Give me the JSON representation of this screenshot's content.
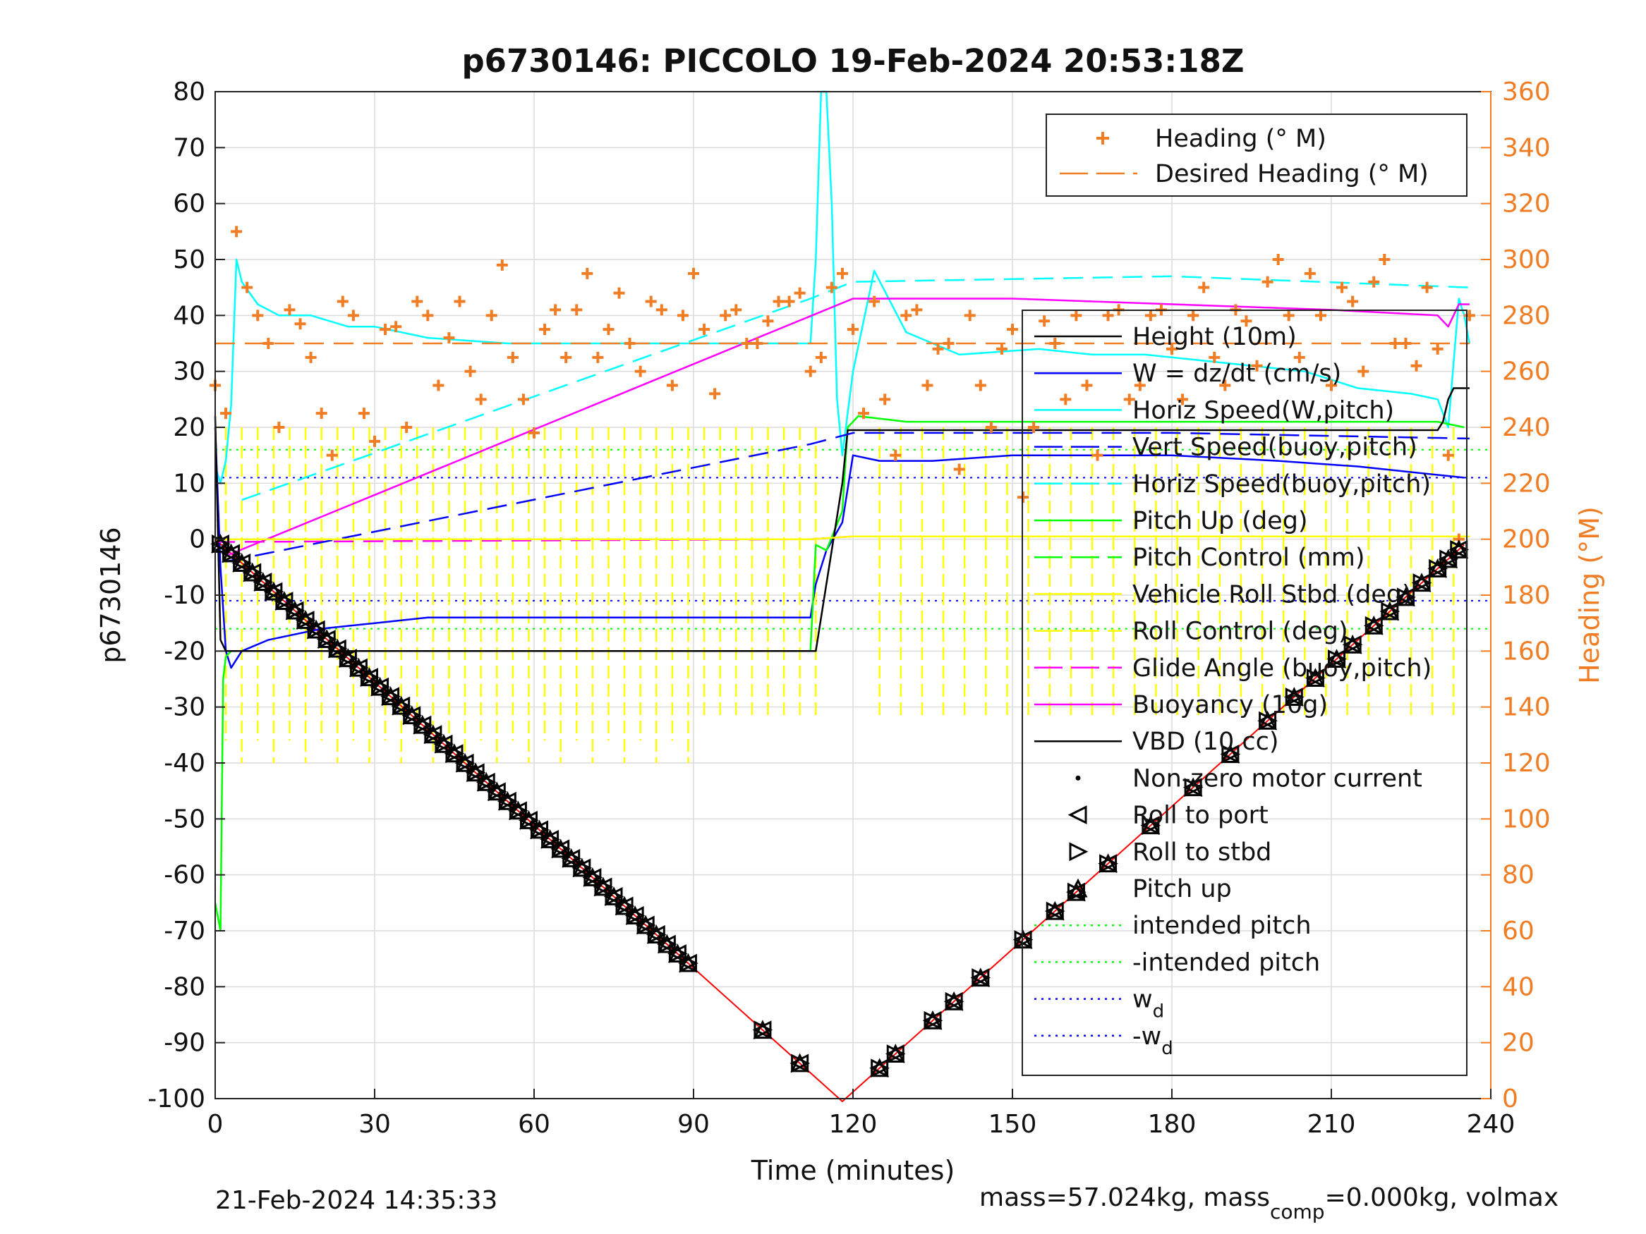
{
  "chart_data": {
    "type": "line",
    "title": "p6730146: PICCOLO 19-Feb-2024 20:53:18Z",
    "xlabel": "Time (minutes)",
    "ylabel": "p6730146",
    "ylabel_right": "Heading (°M)",
    "xlim": [
      0,
      240
    ],
    "ylim": [
      -100,
      80
    ],
    "ylim_right": [
      0,
      360
    ],
    "x_ticks": [
      "0",
      "30",
      "60",
      "90",
      "120",
      "150",
      "180",
      "210",
      "240"
    ],
    "y_ticks": [
      "80",
      "70",
      "60",
      "50",
      "40",
      "30",
      "20",
      "10",
      "0",
      "-10",
      "-20",
      "-30",
      "-40",
      "-50",
      "-60",
      "-70",
      "-80",
      "-90",
      "-100"
    ],
    "y_ticks_right": [
      "360",
      "340",
      "320",
      "300",
      "280",
      "260",
      "240",
      "220",
      "200",
      "180",
      "160",
      "140",
      "120",
      "100",
      "80",
      "60",
      "40",
      "20",
      "0"
    ],
    "grid": true,
    "footer_left": "21-Feb-2024 14:35:33",
    "footer_right_pre": "mass=57.024kg, mass",
    "footer_right_sub": "comp",
    "footer_right_post": "=0.000kg, volmax",
    "legend_top": [
      {
        "label": "Heading (° M)",
        "color": "#f07c24",
        "style": "plus"
      },
      {
        "label": "Desired Heading (° M)",
        "color": "#f07c24",
        "style": "dash"
      }
    ],
    "legend_main": [
      {
        "label": "Height (10m)",
        "color": "#000000",
        "style": "solid"
      },
      {
        "label": "W = dz/dt (cm/s)",
        "color": "#0000ff",
        "style": "solid"
      },
      {
        "label": "Horiz Speed(W,pitch)",
        "color": "#00ffff",
        "style": "solid"
      },
      {
        "label": "Vert Speed(buoy,pitch)",
        "color": "#0000ff",
        "style": "dash"
      },
      {
        "label": "Horiz Speed(buoy,pitch)",
        "color": "#00ffff",
        "style": "dash"
      },
      {
        "label": "Pitch Up (deg)",
        "color": "#00ff00",
        "style": "solid"
      },
      {
        "label": "Pitch Control (mm)",
        "color": "#00ff00",
        "style": "dash"
      },
      {
        "label": "Vehicle Roll Stbd (deg)",
        "color": "#ffff00",
        "style": "solid"
      },
      {
        "label": "Roll Control (deg)",
        "color": "#ffff00",
        "style": "dash"
      },
      {
        "label": "Glide Angle (buoy,pitch)",
        "color": "#ff00ff",
        "style": "dash"
      },
      {
        "label": "Buoyancy (10g)",
        "color": "#ff00ff",
        "style": "solid"
      },
      {
        "label": "VBD (10 cc)",
        "color": "#000000",
        "style": "solid"
      },
      {
        "label": "Non-zero motor current",
        "color": "#000000",
        "style": "dot"
      },
      {
        "label": "Roll to port",
        "color": "#000000",
        "style": "triL"
      },
      {
        "label": "Roll to stbd",
        "color": "#000000",
        "style": "triR"
      },
      {
        "label": "Pitch up",
        "color": "#000000",
        "style": "triU"
      },
      {
        "label": "intended pitch",
        "color": "#00ff00",
        "style": "dotted"
      },
      {
        "label": "-intended pitch",
        "color": "#00ff00",
        "style": "dotted"
      },
      {
        "label": "w",
        "sub": "d",
        "color": "#0000ff",
        "style": "dotted"
      },
      {
        "label": "-w",
        "sub": "d",
        "color": "#0000ff",
        "style": "dotted"
      }
    ],
    "series": [
      {
        "name": "Height (10m)",
        "color": "#ff0000",
        "x": [
          0,
          118,
          235
        ],
        "y": [
          0,
          -100.5,
          -1
        ]
      },
      {
        "name": "Horiz Speed(W,pitch)",
        "color": "#00ffff",
        "x": [
          0,
          1,
          2,
          3,
          4,
          5,
          8,
          12,
          18,
          25,
          30,
          40,
          55,
          70,
          85,
          100,
          112,
          113,
          114,
          115,
          116,
          117,
          118,
          120,
          124,
          130,
          140,
          155,
          165,
          175,
          185,
          195,
          205,
          215,
          225,
          230,
          232,
          234,
          235,
          236
        ],
        "y": [
          13,
          10,
          14,
          24,
          50,
          46,
          42,
          40,
          40,
          38,
          38,
          36,
          35,
          35,
          35,
          35,
          35,
          50,
          80,
          80,
          60,
          25,
          15,
          30,
          48,
          37,
          33,
          34,
          33,
          33,
          32,
          31,
          30,
          27,
          26,
          25,
          20,
          43,
          40,
          35
        ]
      },
      {
        "name": "W = dz/dt (cm/s)",
        "color": "#0000ff",
        "x": [
          0,
          1,
          2,
          3,
          5,
          10,
          20,
          30,
          40,
          60,
          80,
          100,
          112,
          113,
          115,
          118,
          120,
          125,
          135,
          150,
          165,
          180,
          200,
          215,
          225,
          235
        ],
        "y": [
          20,
          -5,
          -20,
          -23,
          -20,
          -18,
          -16,
          -15,
          -14,
          -14,
          -14,
          -14,
          -14,
          -8,
          -2,
          3,
          15,
          14,
          14,
          15,
          15,
          15,
          14,
          13,
          12,
          11
        ]
      },
      {
        "name": "Pitch Up (deg)",
        "color": "#00ff00",
        "x": [
          0,
          1,
          1.5,
          2,
          3,
          5,
          10,
          20,
          40,
          60,
          80,
          100,
          112,
          113,
          115,
          118,
          119,
          121,
          130,
          150,
          170,
          190,
          210,
          230,
          235
        ],
        "y": [
          -65,
          -70,
          -25,
          -21,
          -20,
          -20,
          -20,
          -20,
          -20,
          -20,
          -20,
          -20,
          -20,
          -1,
          -2,
          5,
          20,
          22,
          21,
          21,
          21,
          21,
          21,
          21,
          20
        ]
      },
      {
        "name": "VBD (10 cc)",
        "color": "#000000",
        "x": [
          0,
          1,
          2,
          10,
          50,
          100,
          113,
          118,
          119,
          150,
          200,
          230,
          231,
          232,
          233,
          236
        ],
        "y": [
          22,
          -18,
          -20,
          -20,
          -20,
          -20,
          -20,
          10,
          19.5,
          19.5,
          19.5,
          19.5,
          21,
          25,
          27,
          27
        ]
      },
      {
        "name": "Buoyancy (10g)",
        "color": "#ff00ff",
        "x": [
          2,
          120,
          150,
          180,
          210,
          230,
          232,
          234,
          236
        ],
        "y": [
          -3,
          43,
          43,
          42,
          41,
          40,
          38,
          42,
          42
        ]
      },
      {
        "name": "Glide Angle (buoy,pitch)",
        "color": "#ff00ff",
        "dash": true,
        "x": [
          0,
          112,
          120,
          236
        ],
        "y": [
          -0.5,
          0,
          0.5,
          0.5
        ]
      },
      {
        "name": "Vert Speed(buoy,pitch)",
        "color": "#0000ff",
        "dash": true,
        "x": [
          2,
          112,
          120,
          180,
          236
        ],
        "y": [
          -4,
          17,
          19,
          19,
          18
        ]
      },
      {
        "name": "Horiz Speed(buoy,pitch)",
        "color": "#00ffff",
        "dash": true,
        "x": [
          5,
          112,
          120,
          180,
          236
        ],
        "y": [
          7,
          43,
          46,
          47,
          45
        ]
      },
      {
        "name": "Vehicle Roll Stbd (deg)",
        "color": "#ffff00",
        "x": [
          0,
          30,
          60,
          90,
          112,
          120,
          150,
          180,
          210,
          236
        ],
        "y": [
          0,
          0,
          0,
          0,
          0,
          0.5,
          0.5,
          0.5,
          0.5,
          0.5
        ]
      },
      {
        "name": "Heading (° M)",
        "color": "#f07c24",
        "axis": "right",
        "x": [
          0,
          2,
          4,
          6,
          8,
          10,
          12,
          14,
          16,
          18,
          20,
          22,
          24,
          26,
          28,
          30,
          32,
          34,
          36,
          38,
          40,
          42,
          44,
          46,
          48,
          50,
          52,
          54,
          56,
          58,
          60,
          62,
          64,
          66,
          68,
          70,
          72,
          74,
          76,
          78,
          80,
          82,
          84,
          86,
          88,
          90,
          92,
          94,
          96,
          98,
          100,
          102,
          104,
          106,
          108,
          110,
          112,
          114,
          116,
          118,
          120,
          122,
          124,
          126,
          128,
          130,
          132,
          134,
          136,
          138,
          140,
          142,
          144,
          146,
          148,
          150,
          152,
          154,
          156,
          158,
          160,
          162,
          164,
          166,
          168,
          170,
          172,
          174,
          176,
          178,
          180,
          182,
          184,
          186,
          188,
          190,
          192,
          194,
          196,
          198,
          200,
          202,
          204,
          206,
          208,
          210,
          212,
          214,
          216,
          218,
          220,
          222,
          224,
          226,
          228,
          230,
          232,
          234,
          236
        ],
        "y": [
          255,
          245,
          310,
          290,
          280,
          270,
          240,
          282,
          277,
          265,
          245,
          230,
          285,
          280,
          245,
          235,
          275,
          276,
          240,
          285,
          280,
          255,
          272,
          285,
          260,
          250,
          280,
          298,
          265,
          250,
          238,
          275,
          282,
          265,
          282,
          295,
          265,
          275,
          288,
          270,
          260,
          285,
          282,
          255,
          280,
          295,
          275,
          252,
          280,
          282,
          270,
          270,
          278,
          285,
          285,
          288,
          260,
          265,
          290,
          295,
          275,
          245,
          285,
          250,
          230,
          280,
          282,
          255,
          268,
          270,
          225,
          280,
          255,
          240,
          268,
          275,
          215,
          240,
          278,
          270,
          250,
          280,
          255,
          230,
          280,
          282,
          250,
          255,
          280,
          282,
          268,
          250,
          280,
          290,
          265,
          255,
          282,
          278,
          262,
          292,
          300,
          280,
          265,
          295,
          280,
          255,
          290,
          285,
          260,
          292,
          300,
          270,
          270,
          262,
          290,
          268,
          230,
          200,
          280
        ]
      },
      {
        "name": "Desired Heading (° M)",
        "color": "#f07c24",
        "dash": true,
        "axis": "right",
        "x": [
          0,
          236
        ],
        "y": [
          270,
          270
        ]
      }
    ],
    "reference_lines": [
      {
        "name": "intended pitch",
        "color": "#00ff00",
        "y": 16
      },
      {
        "name": "-intended pitch",
        "color": "#00ff00",
        "y": -16
      },
      {
        "name": "w_d",
        "color": "#0000ff",
        "y": 11
      },
      {
        "name": "-w_d",
        "color": "#0000ff",
        "y": -11
      }
    ],
    "roll_control_pulses_x": [
      2,
      5,
      8,
      11,
      14,
      17,
      20,
      23,
      26,
      29,
      32,
      35,
      38,
      41,
      44,
      47,
      50,
      53,
      56,
      59,
      62,
      65,
      68,
      71,
      74,
      77,
      80,
      83,
      86,
      89,
      92,
      95,
      98,
      101,
      104,
      107,
      110,
      113,
      125,
      129,
      133,
      137,
      141,
      145,
      149,
      153,
      157,
      161,
      165,
      169,
      173,
      177,
      181,
      185,
      189,
      193,
      197,
      201,
      205,
      209,
      213,
      217,
      221,
      225,
      229,
      233
    ],
    "markers_x": [
      1,
      3,
      5,
      7,
      9,
      11,
      13,
      15,
      17,
      19,
      21,
      23,
      25,
      27,
      29,
      31,
      33,
      35,
      37,
      39,
      41,
      43,
      45,
      47,
      49,
      51,
      53,
      55,
      57,
      59,
      61,
      63,
      65,
      67,
      69,
      71,
      73,
      75,
      77,
      79,
      81,
      83,
      85,
      87,
      89,
      103,
      110,
      125,
      128,
      135,
      139,
      144,
      152,
      158,
      162,
      168,
      176,
      184,
      191,
      198,
      203,
      207,
      211,
      214,
      218,
      221,
      224,
      227,
      230,
      232,
      234
    ]
  }
}
